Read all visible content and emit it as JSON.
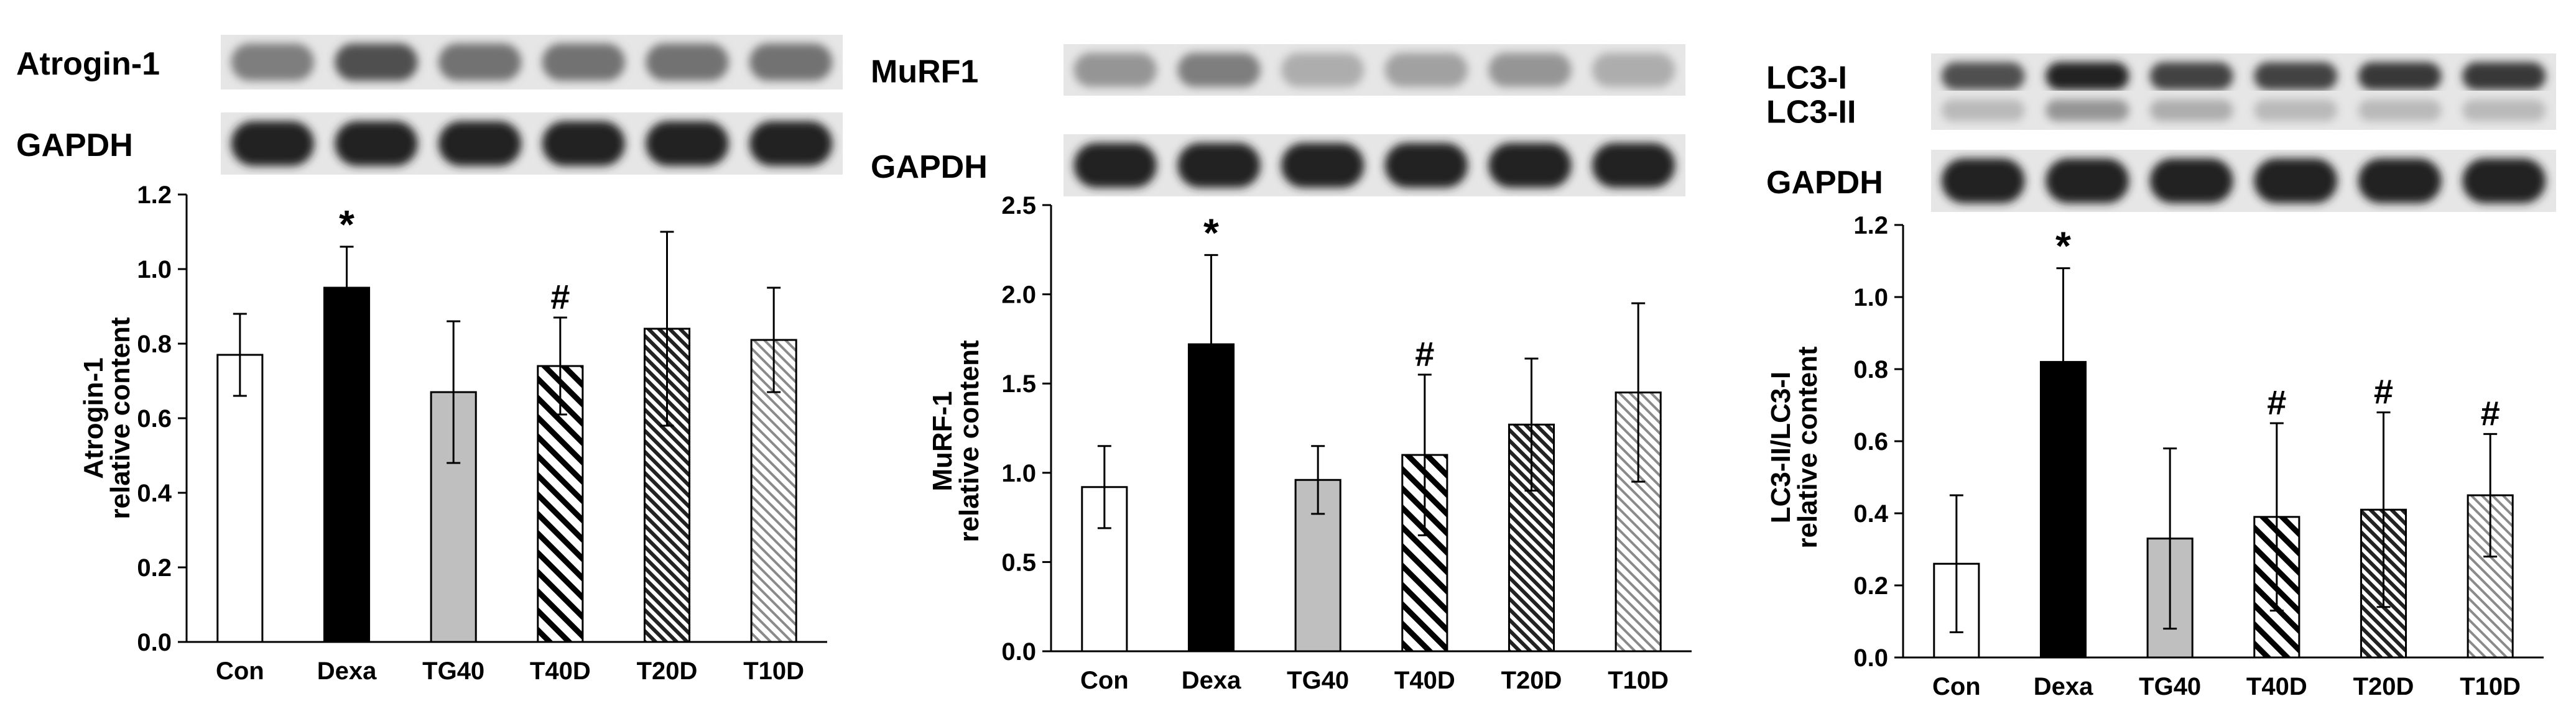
{
  "chart_data": [
    {
      "type": "bar",
      "blots": [
        {
          "label": "Atrogin-1",
          "intensity": [
            0.55,
            0.75,
            0.6,
            0.6,
            0.6,
            0.6
          ]
        },
        {
          "label": "GAPDH",
          "intensity": [
            0.95,
            0.95,
            0.95,
            0.95,
            0.95,
            0.95
          ]
        }
      ],
      "categories": [
        "Con",
        "Dexa",
        "TG40",
        "T40D",
        "T20D",
        "T10D"
      ],
      "values": [
        0.77,
        0.95,
        0.67,
        0.74,
        0.84,
        0.81
      ],
      "errors": [
        0.11,
        0.11,
        0.19,
        0.13,
        0.26,
        0.14
      ],
      "marks": [
        "",
        "*",
        "",
        "#",
        "",
        ""
      ],
      "ylabel": [
        "Atrogin-1",
        "relative content"
      ],
      "ylim": [
        0,
        1.2
      ],
      "yticks": [
        "0.0",
        "0.2",
        "0.4",
        "0.6",
        "0.8",
        "1.0",
        "1.2"
      ],
      "fills": [
        "white",
        "black",
        "gray",
        "hatch-wide",
        "hatch-dense",
        "hatch-light"
      ]
    },
    {
      "type": "bar",
      "blots": [
        {
          "label": "MuRF1",
          "intensity": [
            0.45,
            0.55,
            0.35,
            0.4,
            0.45,
            0.35
          ]
        },
        {
          "label": "GAPDH",
          "intensity": [
            0.95,
            0.95,
            0.95,
            0.95,
            0.95,
            0.95
          ]
        }
      ],
      "categories": [
        "Con",
        "Dexa",
        "TG40",
        "T40D",
        "T20D",
        "T10D"
      ],
      "values": [
        0.92,
        1.72,
        0.96,
        1.1,
        1.27,
        1.45
      ],
      "errors": [
        0.23,
        0.5,
        0.19,
        0.45,
        0.37,
        0.5
      ],
      "marks": [
        "",
        "*",
        "",
        "#",
        "",
        ""
      ],
      "ylabel": [
        "MuRF-1",
        "relative content"
      ],
      "ylim": [
        0,
        2.5
      ],
      "yticks": [
        "0.0",
        "0.5",
        "1.0",
        "1.5",
        "2.0",
        "2.5"
      ],
      "fills": [
        "white",
        "black",
        "gray",
        "hatch-wide",
        "hatch-dense",
        "hatch-light"
      ]
    },
    {
      "type": "bar",
      "blots": [
        {
          "label": "LC3-I",
          "intensity": [
            0.75,
            0.95,
            0.8,
            0.8,
            0.85,
            0.85
          ]
        },
        {
          "label": "LC3-II",
          "intensity": [
            0.3,
            0.45,
            0.35,
            0.3,
            0.3,
            0.3
          ]
        },
        {
          "label": "GAPDH",
          "intensity": [
            0.95,
            0.95,
            0.95,
            0.95,
            0.95,
            0.95
          ]
        }
      ],
      "categories": [
        "Con",
        "Dexa",
        "TG40",
        "T40D",
        "T20D",
        "T10D"
      ],
      "values": [
        0.26,
        0.82,
        0.33,
        0.39,
        0.41,
        0.45
      ],
      "errors": [
        0.19,
        0.26,
        0.25,
        0.26,
        0.27,
        0.17
      ],
      "marks": [
        "",
        "*",
        "",
        "#",
        "#",
        "#"
      ],
      "ylabel": [
        "LC3-II/LC3-I",
        "relative content"
      ],
      "ylim": [
        0,
        1.2
      ],
      "yticks": [
        "0.0",
        "0.2",
        "0.4",
        "0.6",
        "0.8",
        "1.0",
        "1.2"
      ],
      "fills": [
        "white",
        "black",
        "gray",
        "hatch-wide",
        "hatch-dense",
        "hatch-light"
      ]
    }
  ]
}
